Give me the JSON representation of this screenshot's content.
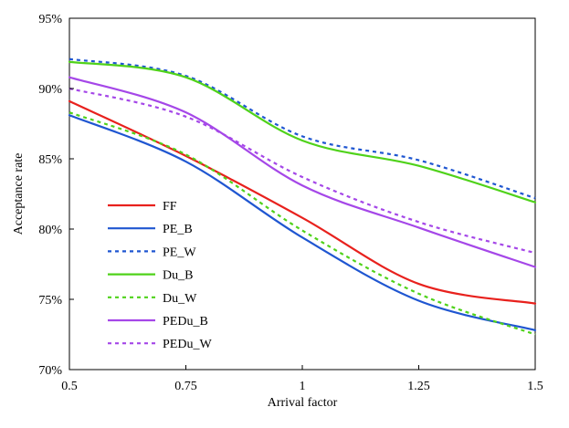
{
  "chart_data": {
    "type": "line",
    "title": "",
    "xlabel": "Arrival factor",
    "ylabel": "Acceptance rate",
    "xlim": [
      0.5,
      1.5
    ],
    "ylim": [
      70,
      95
    ],
    "x_ticks": [
      0.5,
      0.75,
      1,
      1.25,
      1.5
    ],
    "x_tick_labels": [
      "0.5",
      "0.75",
      "1",
      "1.25",
      "1.5"
    ],
    "y_ticks": [
      70,
      75,
      80,
      85,
      90,
      95
    ],
    "y_tick_labels": [
      "70%",
      "75%",
      "80%",
      "85%",
      "90%",
      "95%"
    ],
    "grid": false,
    "legend_position": "left-middle",
    "x": [
      0.5,
      0.75,
      1,
      1.25,
      1.5
    ],
    "series": [
      {
        "name": "FF",
        "color": "#e8211d",
        "dashed": false,
        "values": [
          89.1,
          85.2,
          80.8,
          76.1,
          74.7
        ]
      },
      {
        "name": "PE_B",
        "color": "#1f56d1",
        "dashed": false,
        "values": [
          88.1,
          84.8,
          79.4,
          74.9,
          72.8
        ]
      },
      {
        "name": "PE_W",
        "color": "#1f56d1",
        "dashed": true,
        "values": [
          92.1,
          90.9,
          86.6,
          84.9,
          82.2
        ]
      },
      {
        "name": "Du_B",
        "color": "#4fd21a",
        "dashed": false,
        "values": [
          91.9,
          90.8,
          86.3,
          84.5,
          81.9
        ]
      },
      {
        "name": "Du_W",
        "color": "#4fd21a",
        "dashed": true,
        "values": [
          88.3,
          85.3,
          79.9,
          75.4,
          72.5
        ]
      },
      {
        "name": "PEDu_B",
        "color": "#a547e8",
        "dashed": false,
        "values": [
          90.8,
          88.3,
          83.1,
          80.1,
          77.3
        ]
      },
      {
        "name": "PEDu_W",
        "color": "#a547e8",
        "dashed": true,
        "values": [
          90.0,
          88.0,
          83.7,
          80.5,
          78.3
        ]
      }
    ]
  }
}
